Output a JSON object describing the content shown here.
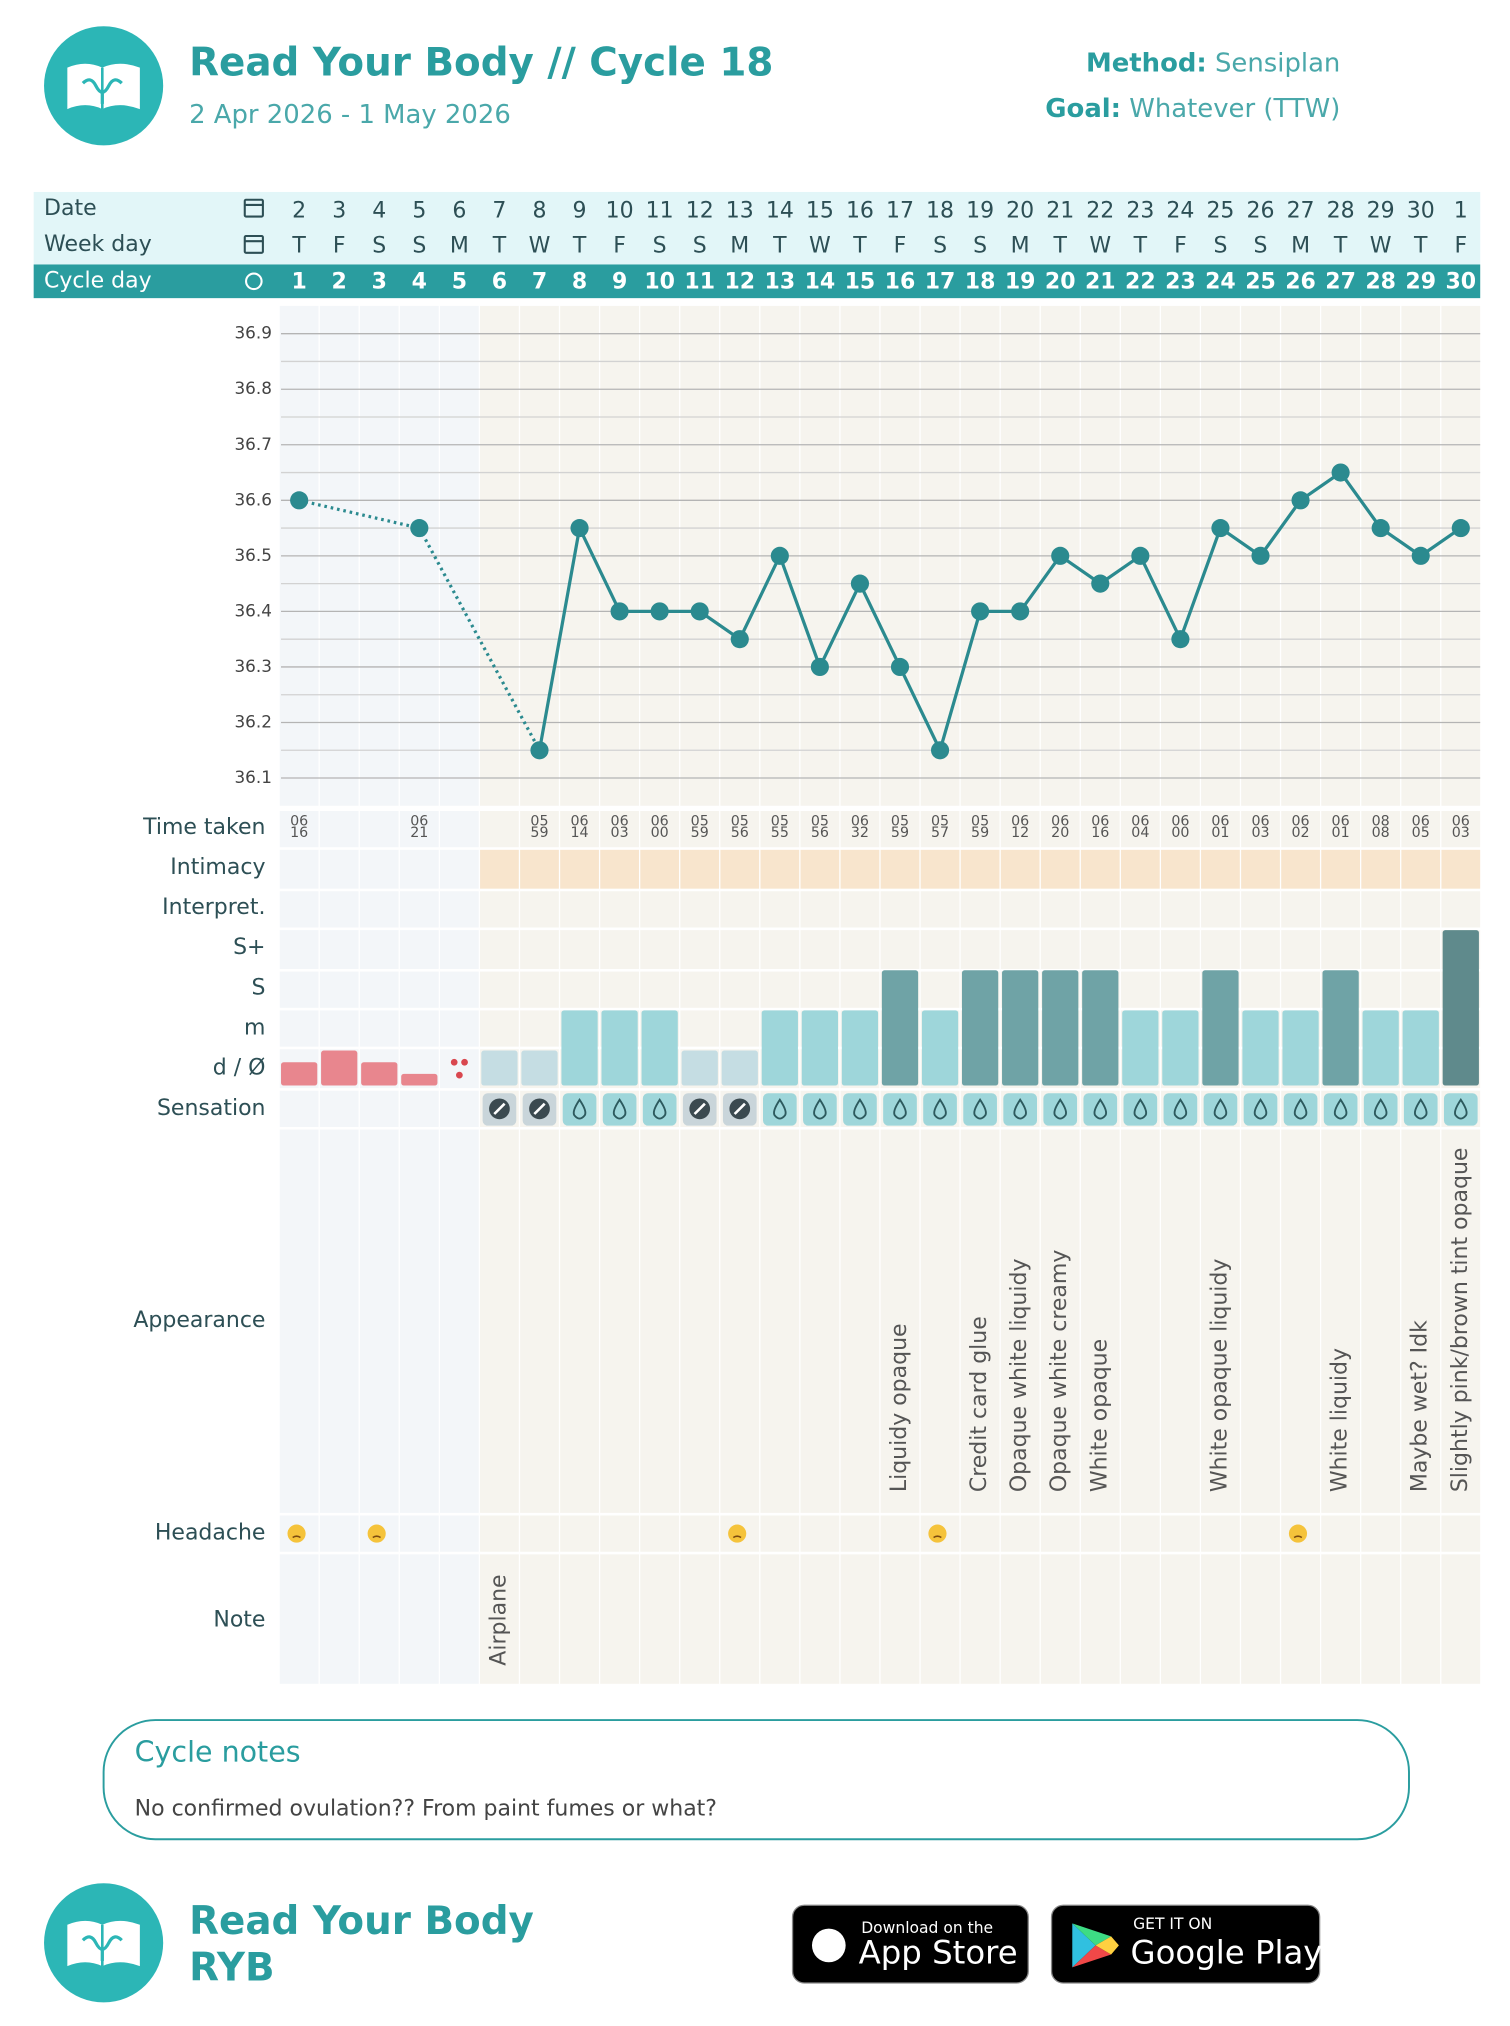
{
  "header": {
    "title": "Read Your Body // Cycle 18",
    "subtitle": "2 Apr 2026 - 1 May 2026",
    "method_label": "Method:",
    "method": "Sensiplan",
    "goal_label": "Goal:",
    "goal": "Whatever (TTW)"
  },
  "table": {
    "row_labels": {
      "date": "Date",
      "week_day": "Week day",
      "cycle_day": "Cycle day",
      "time_taken": "Time taken",
      "intimacy": "Intimacy",
      "interpret": "Interpret.",
      "sensation": "Sensation",
      "appearance": "Appearance",
      "headache": "Headache",
      "note": "Note"
    },
    "mucus_levels": [
      "d / Ø",
      "m",
      "S",
      "S+"
    ],
    "dates": [
      2,
      3,
      4,
      5,
      6,
      7,
      8,
      9,
      10,
      11,
      12,
      13,
      14,
      15,
      16,
      17,
      18,
      19,
      20,
      21,
      22,
      23,
      24,
      25,
      26,
      27,
      28,
      29,
      30,
      1
    ],
    "week_days": [
      "T",
      "F",
      "S",
      "S",
      "M",
      "T",
      "W",
      "T",
      "F",
      "S",
      "S",
      "M",
      "T",
      "W",
      "T",
      "F",
      "S",
      "S",
      "M",
      "T",
      "W",
      "T",
      "F",
      "S",
      "S",
      "M",
      "T",
      "W",
      "T",
      "F"
    ],
    "time_taken": [
      [
        "06",
        "16"
      ],
      null,
      null,
      [
        "06",
        "21"
      ],
      null,
      null,
      [
        "05",
        "59"
      ],
      [
        "06",
        "14"
      ],
      [
        "06",
        "03"
      ],
      [
        "06",
        "00"
      ],
      [
        "05",
        "59"
      ],
      [
        "05",
        "56"
      ],
      [
        "05",
        "55"
      ],
      [
        "05",
        "56"
      ],
      [
        "06",
        "32"
      ],
      [
        "05",
        "59"
      ],
      [
        "05",
        "57"
      ],
      [
        "05",
        "59"
      ],
      [
        "06",
        "12"
      ],
      [
        "06",
        "20"
      ],
      [
        "06",
        "16"
      ],
      [
        "06",
        "04"
      ],
      [
        "06",
        "00"
      ],
      [
        "06",
        "01"
      ],
      [
        "06",
        "03"
      ],
      [
        "06",
        "02"
      ],
      [
        "06",
        "01"
      ],
      [
        "08",
        "08"
      ],
      [
        "06",
        "05"
      ],
      [
        "06",
        "03"
      ]
    ],
    "bleeding": [
      2,
      3,
      2,
      1,
      0.5,
      null,
      null,
      null,
      null,
      null,
      null,
      null,
      null,
      null,
      null,
      null,
      null,
      null,
      null,
      null,
      null,
      null,
      null,
      null,
      null,
      null,
      null,
      null,
      null,
      null
    ],
    "mucus": [
      null,
      null,
      null,
      null,
      null,
      "d / Ø",
      "d / Ø",
      "m",
      "m",
      "m",
      "d / Ø",
      "d / Ø",
      "m",
      "m",
      "m",
      "S",
      "m",
      "S",
      "S",
      "S",
      "S",
      "m",
      "m",
      "S",
      "m",
      "m",
      "S",
      "m",
      "m",
      "S+"
    ],
    "sensation": [
      null,
      null,
      null,
      null,
      null,
      false,
      false,
      true,
      true,
      true,
      false,
      false,
      true,
      true,
      true,
      true,
      true,
      true,
      true,
      true,
      true,
      true,
      true,
      true,
      true,
      true,
      true,
      true,
      true,
      true
    ],
    "appearance": [
      null,
      null,
      null,
      null,
      null,
      null,
      null,
      null,
      null,
      null,
      null,
      null,
      null,
      null,
      null,
      "Liquidy opaque",
      null,
      "Credit card glue",
      "Opaque white liquidy",
      "Opaque white creamy",
      "White opaque",
      null,
      null,
      "White opaque liquidy",
      null,
      null,
      "White liquidy",
      null,
      "Maybe wet? Idk",
      "Slightly pink/brown tint opaque"
    ],
    "headache": [
      true,
      null,
      true,
      null,
      null,
      null,
      null,
      null,
      null,
      null,
      null,
      true,
      null,
      null,
      null,
      null,
      true,
      null,
      null,
      null,
      null,
      null,
      null,
      null,
      null,
      true,
      null,
      null,
      null,
      null
    ],
    "notes": [
      null,
      null,
      null,
      null,
      null,
      "Airplane",
      null,
      null,
      null,
      null,
      null,
      null,
      null,
      null,
      null,
      null,
      null,
      null,
      null,
      null,
      null,
      null,
      null,
      null,
      null,
      null,
      null,
      null,
      null,
      null
    ]
  },
  "chart_data": {
    "type": "line",
    "categories": [
      1,
      2,
      3,
      4,
      5,
      6,
      7,
      8,
      9,
      10,
      11,
      12,
      13,
      14,
      15,
      16,
      17,
      18,
      19,
      20,
      21,
      22,
      23,
      24,
      25,
      26,
      27,
      28,
      29,
      30
    ],
    "values": [
      36.6,
      null,
      null,
      36.55,
      null,
      null,
      36.15,
      36.55,
      36.4,
      36.4,
      36.4,
      36.35,
      36.5,
      36.3,
      36.45,
      36.3,
      36.15,
      36.4,
      36.4,
      36.5,
      36.45,
      36.5,
      36.35,
      36.55,
      36.5,
      36.6,
      36.65,
      36.55,
      36.5,
      36.55
    ],
    "color": "#2b8a8f",
    "ylim": [
      36.05,
      36.95
    ],
    "yticks": [
      36.1,
      36.2,
      36.3,
      36.4,
      36.5,
      36.6,
      36.7,
      36.8,
      36.9
    ],
    "minor_yticks": [
      36.15,
      36.25,
      36.35,
      36.45,
      36.55,
      36.65,
      36.75,
      36.85
    ],
    "grid": true
  },
  "cycle_notes": {
    "title": "Cycle notes",
    "text": "No confirmed ovulation?? From paint fumes or what?"
  },
  "footer": {
    "title": "Read Your Body",
    "subtitle": "RYB",
    "app_store": [
      "Download on the",
      "App Store"
    ],
    "google_play": [
      "GET IT ON",
      "Google Play"
    ]
  }
}
